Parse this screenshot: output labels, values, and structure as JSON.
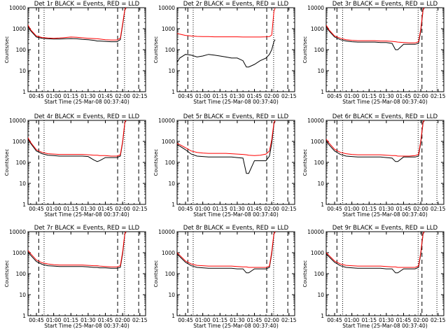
{
  "figure": {
    "colors": {
      "events": "#000000",
      "lld": "#ff0000",
      "axis": "#000000",
      "background": "#ffffff"
    }
  },
  "chart_data": [
    {
      "type": "line",
      "title": "Det 1r BLACK = Events, RED = LLD",
      "xlabel": "Start Time (25-Mar-08 00:37:40)",
      "ylabel": "Counts/sec",
      "yscale": "log",
      "ylim": [
        1,
        10000
      ],
      "xlim": [
        "00:37:40",
        "02:20:00"
      ],
      "xtick_labels": [
        "00:45",
        "01:00",
        "01:15",
        "01:30",
        "01:45",
        "02:00",
        "02:15"
      ],
      "ytick_labels": [
        "1",
        "10",
        "100",
        "1000",
        "10000"
      ],
      "x_times": [
        "00:37:40",
        "00:40",
        "00:45",
        "00:50",
        "00:55",
        "01:00",
        "01:05",
        "01:10",
        "01:15",
        "01:20",
        "01:25",
        "01:30",
        "01:35",
        "01:38",
        "01:40",
        "01:45",
        "01:50",
        "01:55",
        "01:58",
        "02:00",
        "02:02",
        "02:03"
      ],
      "series": [
        {
          "name": "BLACK = Events",
          "values": [
            1300,
            800,
            400,
            350,
            330,
            320,
            320,
            330,
            340,
            330,
            310,
            300,
            280,
            260,
            260,
            250,
            240,
            240,
            300,
            1500,
            8000,
            9500
          ]
        },
        {
          "name": "RED = LLD",
          "values": [
            1500,
            900,
            450,
            380,
            360,
            350,
            360,
            380,
            400,
            390,
            370,
            350,
            340,
            330,
            320,
            300,
            290,
            290,
            350,
            1700,
            8500,
            10000
          ]
        }
      ],
      "vlines_dashed": [
        "00:47:00",
        "01:55:40",
        "02:14:00"
      ],
      "vlines_dotted": [
        "00:51:40",
        "02:01:40"
      ],
      "grid": false
    },
    {
      "type": "line",
      "title": "Det 2r BLACK = Events, RED = LLD",
      "xlabel": "Start Time (25-Mar-08 00:37:40)",
      "ylabel": "Counts/sec",
      "yscale": "log",
      "ylim": [
        1,
        10000
      ],
      "xlim": [
        "00:37:40",
        "02:20:00"
      ],
      "xtick_labels": [
        "00:45",
        "01:00",
        "01:15",
        "01:30",
        "01:45",
        "02:00",
        "02:15"
      ],
      "ytick_labels": [
        "1",
        "10",
        "100",
        "1000",
        "10000"
      ],
      "x_times": [
        "00:37:40",
        "00:40",
        "00:45",
        "00:50",
        "00:55",
        "01:00",
        "01:05",
        "01:10",
        "01:15",
        "01:20",
        "01:25",
        "01:30",
        "01:35",
        "01:38",
        "01:40",
        "01:45",
        "01:50",
        "01:55",
        "01:58",
        "02:00",
        "02:02",
        "02:03"
      ],
      "series": [
        {
          "name": "BLACK = Events",
          "values": [
            25,
            40,
            60,
            55,
            45,
            50,
            60,
            55,
            50,
            45,
            40,
            40,
            30,
            15,
            15,
            20,
            30,
            40,
            60,
            100,
            250,
            300
          ]
        },
        {
          "name": "RED = LLD",
          "values": [
            600,
            550,
            480,
            450,
            430,
            420,
            420,
            410,
            410,
            410,
            410,
            410,
            400,
            400,
            400,
            400,
            400,
            410,
            420,
            500,
            7000,
            9500
          ]
        }
      ],
      "vlines_dashed": [
        "00:47:00",
        "01:55:40",
        "02:14:00"
      ],
      "vlines_dotted": [
        "00:51:40",
        "02:01:40"
      ],
      "grid": false
    },
    {
      "type": "line",
      "title": "Det 3r BLACK = Events, RED = LLD",
      "xlabel": "Start Time (25-Mar-08 00:37:40)",
      "ylabel": "Counts/sec",
      "yscale": "log",
      "ylim": [
        1,
        10000
      ],
      "xlim": [
        "00:37:40",
        "02:20:00"
      ],
      "xtick_labels": [
        "00:45",
        "01:00",
        "01:15",
        "01:30",
        "01:45",
        "02:00",
        "02:15"
      ],
      "ytick_labels": [
        "1",
        "10",
        "100",
        "1000",
        "10000"
      ],
      "x_times": [
        "00:37:40",
        "00:40",
        "00:45",
        "00:50",
        "00:55",
        "01:00",
        "01:05",
        "01:10",
        "01:15",
        "01:20",
        "01:25",
        "01:30",
        "01:35",
        "01:38",
        "01:40",
        "01:45",
        "01:50",
        "01:55",
        "01:58",
        "02:00",
        "02:02",
        "02:03"
      ],
      "series": [
        {
          "name": "BLACK = Events",
          "values": [
            1300,
            800,
            400,
            300,
            260,
            240,
            230,
            230,
            230,
            230,
            220,
            220,
            200,
            100,
            100,
            180,
            180,
            180,
            200,
            800,
            8000,
            9500
          ]
        },
        {
          "name": "RED = LLD",
          "values": [
            1500,
            900,
            450,
            350,
            300,
            280,
            270,
            270,
            270,
            270,
            260,
            260,
            250,
            240,
            230,
            220,
            210,
            210,
            240,
            1000,
            8500,
            10000
          ]
        }
      ],
      "vlines_dashed": [
        "00:47:00",
        "02:01:00"
      ],
      "vlines_dotted": [
        "00:52:00",
        "01:57:40",
        "02:14:00"
      ],
      "grid": false
    },
    {
      "type": "line",
      "title": "Det 4r BLACK = Events, RED = LLD",
      "xlabel": "Start Time (25-Mar-08 00:37:40)",
      "ylabel": "Counts/sec",
      "yscale": "log",
      "ylim": [
        1,
        10000
      ],
      "xlim": [
        "00:37:40",
        "02:20:00"
      ],
      "xtick_labels": [
        "00:45",
        "01:00",
        "01:15",
        "01:30",
        "01:45",
        "02:00",
        "02:15"
      ],
      "ytick_labels": [
        "1",
        "10",
        "100",
        "1000",
        "10000"
      ],
      "x_times": [
        "00:37:40",
        "00:40",
        "00:45",
        "00:50",
        "00:55",
        "01:00",
        "01:05",
        "01:10",
        "01:15",
        "01:20",
        "01:25",
        "01:30",
        "01:35",
        "01:38",
        "01:40",
        "01:45",
        "01:50",
        "01:55",
        "01:58",
        "02:00",
        "02:02",
        "02:03"
      ],
      "series": [
        {
          "name": "BLACK = Events",
          "values": [
            1300,
            800,
            350,
            260,
            220,
            210,
            200,
            200,
            200,
            200,
            200,
            190,
            130,
            110,
            120,
            170,
            170,
            170,
            200,
            900,
            8000,
            9500
          ]
        },
        {
          "name": "RED = LLD",
          "values": [
            1500,
            900,
            400,
            300,
            260,
            250,
            240,
            240,
            240,
            240,
            240,
            230,
            220,
            220,
            210,
            210,
            200,
            200,
            230,
            1000,
            8500,
            10000
          ]
        }
      ],
      "vlines_dashed": [
        "00:47:00",
        "01:55:40",
        "02:14:00"
      ],
      "vlines_dotted": [
        "00:51:40",
        "02:01:40"
      ],
      "grid": false
    },
    {
      "type": "line",
      "title": "Det 5r BLACK = Events, RED = LLD",
      "xlabel": "Start Time (25-Mar-08 00:37:40)",
      "ylabel": "Counts/sec",
      "yscale": "log",
      "ylim": [
        1,
        10000
      ],
      "xlim": [
        "00:37:40",
        "02:20:00"
      ],
      "xtick_labels": [
        "00:45",
        "01:00",
        "01:15",
        "01:30",
        "01:45",
        "02:00",
        "02:15"
      ],
      "ytick_labels": [
        "1",
        "10",
        "100",
        "1000",
        "10000"
      ],
      "x_times": [
        "00:37:40",
        "00:40",
        "00:45",
        "00:50",
        "00:55",
        "01:00",
        "01:05",
        "01:10",
        "01:15",
        "01:20",
        "01:25",
        "01:30",
        "01:35",
        "01:38",
        "01:40",
        "01:45",
        "01:50",
        "01:55",
        "01:58",
        "02:00",
        "02:02",
        "02:03"
      ],
      "series": [
        {
          "name": "BLACK = Events",
          "values": [
            700,
            600,
            400,
            250,
            200,
            190,
            180,
            180,
            180,
            180,
            180,
            170,
            160,
            30,
            30,
            120,
            120,
            120,
            200,
            800,
            7000,
            9000
          ]
        },
        {
          "name": "RED = LLD",
          "values": [
            800,
            700,
            500,
            350,
            300,
            280,
            270,
            270,
            270,
            270,
            260,
            250,
            240,
            230,
            220,
            210,
            220,
            250,
            350,
            1200,
            8000,
            10000
          ]
        }
      ],
      "vlines_dashed": [
        "00:47:00",
        "01:55:40",
        "02:14:00"
      ],
      "vlines_dotted": [
        "00:51:40",
        "02:01:40"
      ],
      "grid": false
    },
    {
      "type": "line",
      "title": "Det 6r BLACK = Events, RED = LLD",
      "xlabel": "Start Time (25-Mar-08 00:37:40)",
      "ylabel": "Counts/sec",
      "yscale": "log",
      "ylim": [
        1,
        10000
      ],
      "xlim": [
        "00:37:40",
        "02:20:00"
      ],
      "xtick_labels": [
        "00:45",
        "01:00",
        "01:15",
        "01:30",
        "01:45",
        "02:00",
        "02:15"
      ],
      "ytick_labels": [
        "1",
        "10",
        "100",
        "1000",
        "10000"
      ],
      "x_times": [
        "00:37:40",
        "00:40",
        "00:45",
        "00:50",
        "00:55",
        "01:00",
        "01:05",
        "01:10",
        "01:15",
        "01:20",
        "01:25",
        "01:30",
        "01:35",
        "01:38",
        "01:40",
        "01:45",
        "01:50",
        "01:55",
        "01:58",
        "02:00",
        "02:02",
        "02:03"
      ],
      "series": [
        {
          "name": "BLACK = Events",
          "values": [
            1100,
            700,
            350,
            240,
            200,
            190,
            180,
            180,
            180,
            180,
            180,
            170,
            160,
            110,
            110,
            180,
            180,
            180,
            200,
            900,
            8000,
            9500
          ]
        },
        {
          "name": "RED = LLD",
          "values": [
            1300,
            850,
            420,
            300,
            260,
            240,
            230,
            230,
            230,
            230,
            230,
            220,
            210,
            210,
            200,
            200,
            200,
            210,
            240,
            1100,
            8500,
            10000
          ]
        }
      ],
      "vlines_dashed": [
        "00:47:00",
        "02:01:00"
      ],
      "vlines_dotted": [
        "00:52:00",
        "01:57:40",
        "02:14:00"
      ],
      "grid": false
    },
    {
      "type": "line",
      "title": "Det 7r BLACK = Events, RED = LLD",
      "xlabel": "Start Time (25-Mar-08 00:37:40)",
      "ylabel": "Counts/sec",
      "yscale": "log",
      "ylim": [
        1,
        10000
      ],
      "xlim": [
        "00:37:40",
        "02:20:00"
      ],
      "xtick_labels": [
        "00:45",
        "01:00",
        "01:15",
        "01:30",
        "01:45",
        "02:00",
        "02:15"
      ],
      "ytick_labels": [
        "1",
        "10",
        "100",
        "1000",
        "10000"
      ],
      "x_times": [
        "00:37:40",
        "00:40",
        "00:45",
        "00:50",
        "00:55",
        "01:00",
        "01:05",
        "01:10",
        "01:15",
        "01:20",
        "01:25",
        "01:30",
        "01:35",
        "01:38",
        "01:40",
        "01:45",
        "01:50",
        "01:55",
        "01:58",
        "02:00",
        "02:02",
        "02:03"
      ],
      "series": [
        {
          "name": "BLACK = Events",
          "values": [
            1100,
            750,
            380,
            280,
            240,
            230,
            220,
            220,
            220,
            220,
            220,
            210,
            200,
            200,
            190,
            190,
            180,
            180,
            200,
            900,
            8000,
            9500
          ]
        },
        {
          "name": "RED = LLD",
          "values": [
            1300,
            900,
            450,
            330,
            290,
            270,
            260,
            260,
            260,
            260,
            260,
            250,
            240,
            240,
            230,
            220,
            210,
            210,
            240,
            1100,
            8500,
            10000
          ]
        }
      ],
      "vlines_dashed": [
        "00:47:00",
        "01:55:40",
        "02:14:00"
      ],
      "vlines_dotted": [
        "00:51:40",
        "02:01:40"
      ],
      "grid": false
    },
    {
      "type": "line",
      "title": "Det 8r BLACK = Events, RED = LLD",
      "xlabel": "Start Time (25-Mar-08 00:37:40)",
      "ylabel": "Counts/sec",
      "yscale": "log",
      "ylim": [
        1,
        10000
      ],
      "xlim": [
        "00:37:40",
        "02:20:00"
      ],
      "xtick_labels": [
        "00:45",
        "01:00",
        "01:15",
        "01:30",
        "01:45",
        "02:00",
        "02:15"
      ],
      "ytick_labels": [
        "1",
        "10",
        "100",
        "1000",
        "10000"
      ],
      "x_times": [
        "00:37:40",
        "00:40",
        "00:45",
        "00:50",
        "00:55",
        "01:00",
        "01:05",
        "01:10",
        "01:15",
        "01:20",
        "01:25",
        "01:30",
        "01:35",
        "01:38",
        "01:40",
        "01:45",
        "01:50",
        "01:55",
        "01:58",
        "02:00",
        "02:02",
        "02:03"
      ],
      "series": [
        {
          "name": "BLACK = Events",
          "values": [
            900,
            650,
            350,
            240,
            200,
            190,
            180,
            180,
            180,
            180,
            180,
            170,
            170,
            110,
            110,
            170,
            170,
            170,
            200,
            900,
            8000,
            9500
          ]
        },
        {
          "name": "RED = LLD",
          "values": [
            1000,
            750,
            400,
            290,
            250,
            240,
            230,
            230,
            230,
            230,
            230,
            220,
            210,
            210,
            200,
            200,
            200,
            200,
            230,
            1100,
            8500,
            10000
          ]
        }
      ],
      "vlines_dashed": [
        "00:47:00",
        "01:55:40",
        "02:14:00"
      ],
      "vlines_dotted": [
        "00:51:40",
        "02:01:40"
      ],
      "grid": false
    },
    {
      "type": "line",
      "title": "Det 9r BLACK = Events, RED = LLD",
      "xlabel": "Start Time (25-Mar-08 00:37:40)",
      "ylabel": "Counts/sec",
      "yscale": "log",
      "ylim": [
        1,
        10000
      ],
      "xlim": [
        "00:37:40",
        "02:20:00"
      ],
      "xtick_labels": [
        "00:45",
        "01:00",
        "01:15",
        "01:30",
        "01:45",
        "02:00",
        "02:15"
      ],
      "ytick_labels": [
        "1",
        "10",
        "100",
        "1000",
        "10000"
      ],
      "x_times": [
        "00:37:40",
        "00:40",
        "00:45",
        "00:50",
        "00:55",
        "01:00",
        "01:05",
        "01:10",
        "01:15",
        "01:20",
        "01:25",
        "01:30",
        "01:35",
        "01:38",
        "01:40",
        "01:45",
        "01:50",
        "01:55",
        "01:58",
        "02:00",
        "02:02",
        "02:03"
      ],
      "series": [
        {
          "name": "BLACK = Events",
          "values": [
            900,
            650,
            350,
            240,
            200,
            190,
            180,
            180,
            180,
            180,
            180,
            170,
            170,
            110,
            110,
            170,
            170,
            170,
            200,
            900,
            8000,
            9500
          ]
        },
        {
          "name": "RED = LLD",
          "values": [
            1000,
            750,
            400,
            290,
            250,
            240,
            230,
            230,
            230,
            230,
            230,
            220,
            210,
            210,
            200,
            200,
            200,
            200,
            230,
            1100,
            8500,
            10000
          ]
        }
      ],
      "vlines_dashed": [
        "00:47:00",
        "02:01:00"
      ],
      "vlines_dotted": [
        "00:52:00",
        "01:57:40",
        "02:14:00"
      ],
      "grid": false
    }
  ]
}
